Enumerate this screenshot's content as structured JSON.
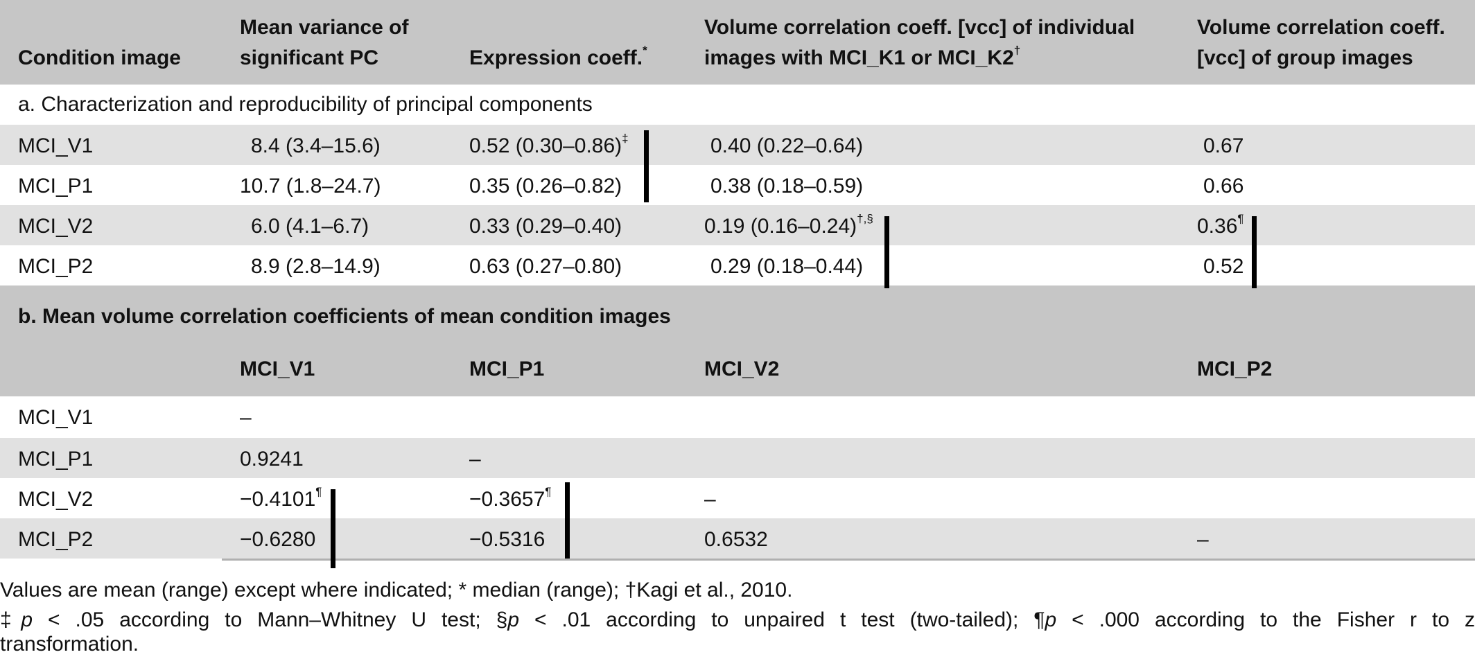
{
  "header": {
    "col1": "Condition image",
    "col2_line1": "Mean variance of",
    "col2_line2": "significant PC",
    "col3": "Expression coeff.",
    "col3_sup": "*",
    "col4_line1": "Volume correlation coeff. [vcc] of individual",
    "col4_line2": "images with MCI_K1 or MCI_K2",
    "col4_sup": "†",
    "col5_line1": "Volume correlation coeff.",
    "col5_line2": "[vcc] of group images"
  },
  "section_a": {
    "title": "a. Characterization and reproducibility of principal components",
    "rows": [
      {
        "name": "MCI_V1",
        "variance": "8.4 (3.4–15.6)",
        "expr": "0.52 (0.30–0.86)",
        "expr_sup": "‡",
        "vcc_ind": "0.40 (0.22–0.64)",
        "vcc_ind_sup": "",
        "vcc_grp": "0.67",
        "vcc_grp_sup": ""
      },
      {
        "name": "MCI_P1",
        "variance": "10.7 (1.8–24.7)",
        "expr": "0.35 (0.26–0.82)",
        "expr_sup": "",
        "vcc_ind": "0.38 (0.18–0.59)",
        "vcc_ind_sup": "",
        "vcc_grp": "0.66",
        "vcc_grp_sup": ""
      },
      {
        "name": "MCI_V2",
        "variance": "6.0 (4.1–6.7)",
        "expr": "0.33 (0.29–0.40)",
        "expr_sup": "",
        "vcc_ind": "0.19 (0.16–0.24)",
        "vcc_ind_sup": "†,§",
        "vcc_grp": "0.36",
        "vcc_grp_sup": "¶"
      },
      {
        "name": "MCI_P2",
        "variance": "8.9 (2.8–14.9)",
        "expr": "0.63 (0.27–0.80)",
        "expr_sup": "",
        "vcc_ind": "0.29 (0.18–0.44)",
        "vcc_ind_sup": "",
        "vcc_grp": "0.52",
        "vcc_grp_sup": ""
      }
    ]
  },
  "section_b": {
    "title": "b. Mean volume correlation coefficients of mean condition images",
    "columns": [
      "MCI_V1",
      "MCI_P1",
      "MCI_V2",
      "MCI_P2"
    ],
    "rows": [
      {
        "name": "MCI_V1",
        "v1": "–",
        "v1_sup": "",
        "p1": "",
        "p1_sup": "",
        "v2": "",
        "p2": ""
      },
      {
        "name": "MCI_P1",
        "v1": "0.9241",
        "v1_sup": "",
        "p1": "–",
        "p1_sup": "",
        "v2": "",
        "p2": ""
      },
      {
        "name": "MCI_V2",
        "v1": "−0.4101",
        "v1_sup": "¶",
        "p1": "−0.3657",
        "p1_sup": "¶",
        "v2": "–",
        "p2": ""
      },
      {
        "name": "MCI_P2",
        "v1": "−0.6280",
        "v1_sup": "",
        "p1": "−0.5316",
        "p1_sup": "",
        "v2": "0.6532",
        "p2": "–"
      }
    ]
  },
  "footnotes": {
    "line1": "Values are mean (range) except where indicated; * median (range); †Kagi et al., 2010.",
    "n1_sym": "‡",
    "n1_p": "p",
    "n1_text": " < .05 according to Mann–Whitney U test; ",
    "n2_sym": "§",
    "n2_p": "p",
    "n2_text": " < .01 according to unpaired t test (two-tailed); ",
    "n3_sym": "¶",
    "n3_p": "p",
    "n3_text": " < .000 according to the Fisher r to z",
    "line3": "transformation."
  }
}
